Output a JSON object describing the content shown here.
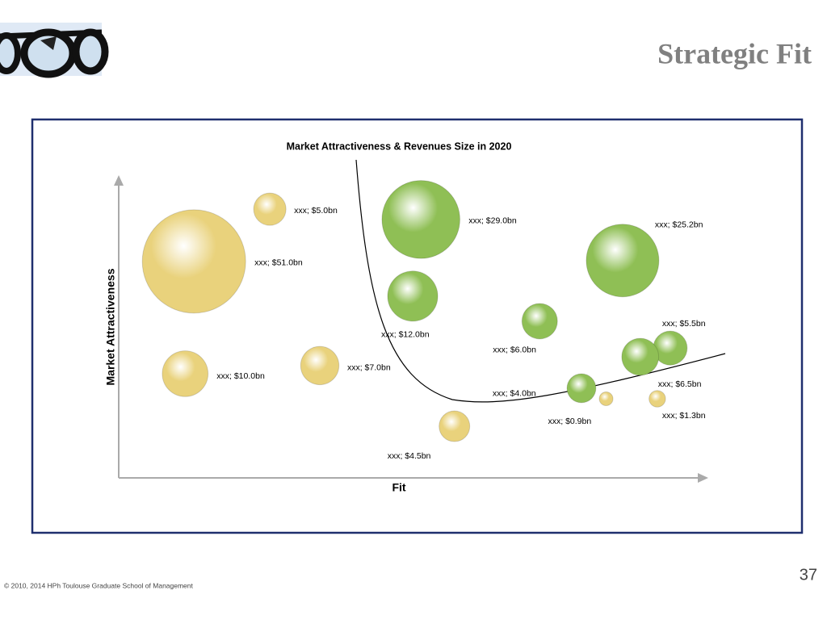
{
  "header": {
    "title": "Strategic Fit"
  },
  "footer": {
    "copyright": "© 2010, 2014 HPh Toulouse Graduate School of Management",
    "page_number": "37"
  },
  "chart_data": {
    "type": "bubble",
    "title": "Market Attractiveness &  Revenues Size in 2020",
    "xlabel": "Fit",
    "ylabel": "Market Attractiveness",
    "xlim": [
      0,
      100
    ],
    "ylim": [
      0,
      100
    ],
    "x": [
      12.8,
      25.7,
      11.3,
      34.2,
      51.4,
      50.0,
      57.1,
      71.6,
      85.7,
      78.7,
      82.9,
      93.8,
      88.7,
      91.6
    ],
    "y": [
      71.7,
      89.0,
      34.5,
      37.2,
      85.6,
      60.2,
      17.1,
      51.9,
      72.0,
      29.7,
      26.2,
      43.0,
      40.1,
      26.2
    ],
    "sizes": [
      51.0,
      5.0,
      10.0,
      7.0,
      29.0,
      12.0,
      4.5,
      6.0,
      25.2,
      4.0,
      0.9,
      5.5,
      6.5,
      1.3
    ],
    "value_labels": [
      "xxx; $51.0bn",
      "xxx; $5.0bn",
      "xxx; $10.0bn",
      "xxx; $7.0bn",
      "xxx; $29.0bn",
      "xxx; $12.0bn",
      "xxx; $4.5bn",
      "xxx; $6.0bn",
      "xxx; $25.2bn",
      "xxx; $4.0bn",
      "xxx; $0.9bn",
      "xxx; $5.5bn",
      "xxx; $6.5bn",
      "xxx; $1.3bn"
    ],
    "colors": [
      "#e9d27c",
      "#e9d27c",
      "#e9d27c",
      "#e9d27c",
      "#8fbf55",
      "#8fbf55",
      "#e9d27c",
      "#8fbf55",
      "#8fbf55",
      "#8fbf55",
      "#e9d27c",
      "#8fbf55",
      "#8fbf55",
      "#e9d27c"
    ]
  }
}
